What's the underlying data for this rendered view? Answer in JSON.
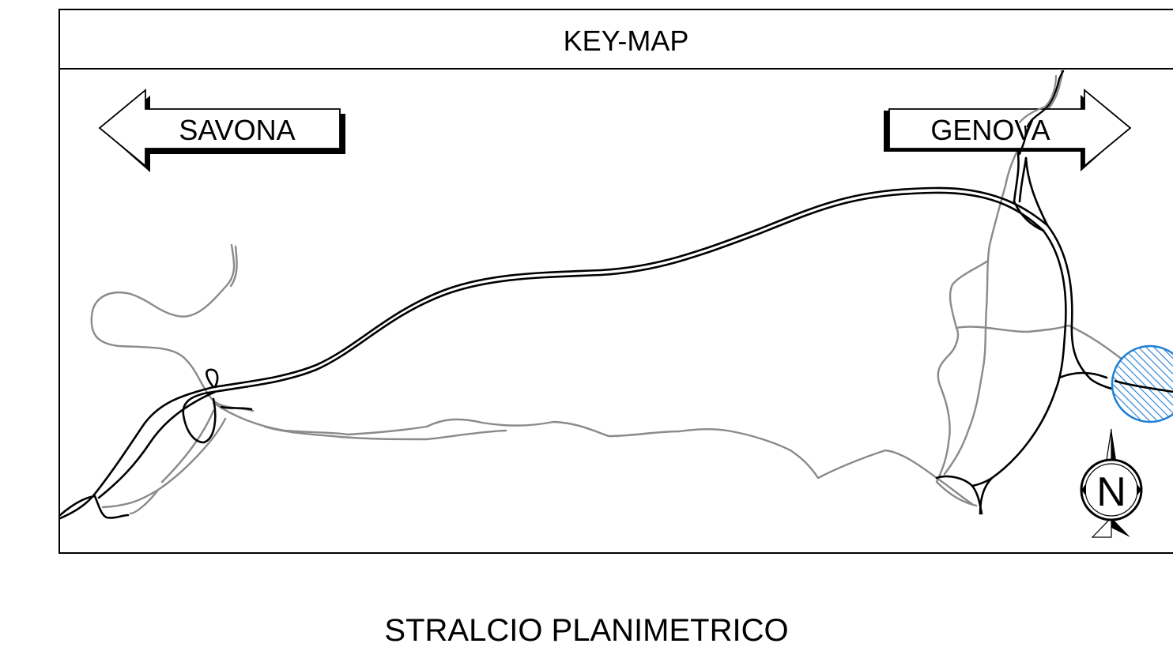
{
  "keymap": {
    "title": "KEY-MAP",
    "direction_west": "SAVONA",
    "direction_east": "GENOVA",
    "north_label": "N"
  },
  "caption": "STRALCIO PLANIMETRICO",
  "legend_colors": {
    "main_road": "#000000",
    "secondary_road": "#888888",
    "highlight_zone": "#1e7fd6"
  },
  "icons": {
    "north_arrow": "compass-north-icon",
    "direction_left": "arrow-left-icon",
    "direction_right": "arrow-right-icon"
  }
}
